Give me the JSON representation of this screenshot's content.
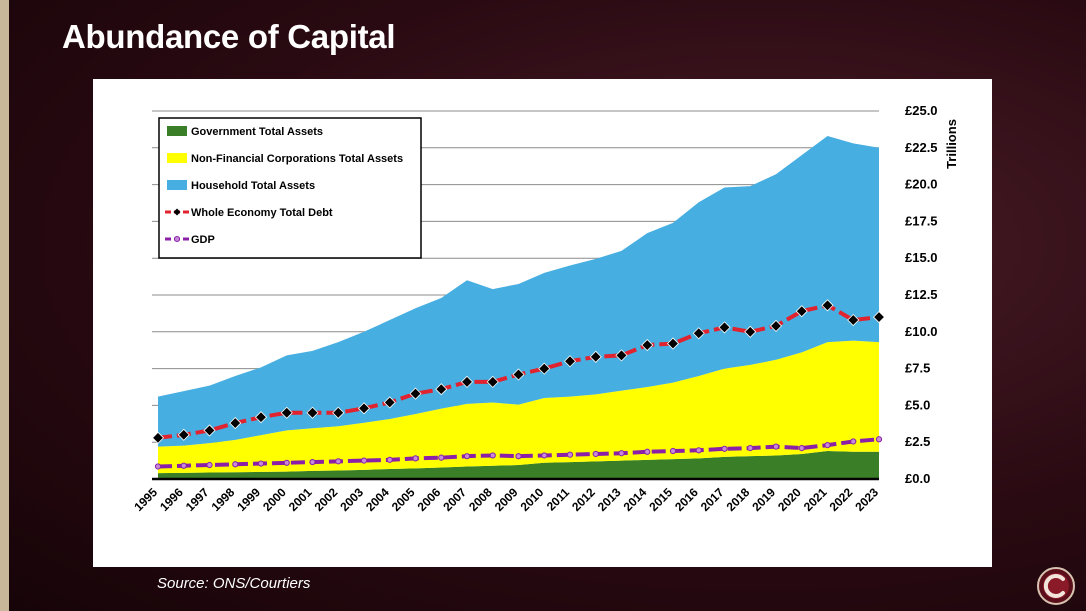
{
  "slide": {
    "title": "Abundance of Capital",
    "source": "Source: ONS/Courtiers"
  },
  "colors": {
    "government": "#3a7f27",
    "nfc": "#ffff00",
    "household": "#46aee0",
    "debt_line": "#e0232e",
    "debt_marker": "#000000",
    "gdp_line": "#8b1fa8",
    "gdp_marker": "#c58ad8"
  },
  "icons": {
    "logo": "courtiers-logo-icon"
  },
  "chart_data": {
    "type": "area",
    "title": "",
    "ylabel": "Trillions",
    "xlabel": "",
    "ylim": [
      0,
      25
    ],
    "y_ticks": [
      "£0.0",
      "£2.5",
      "£5.0",
      "£7.5",
      "£10.0",
      "£12.5",
      "£15.0",
      "£17.5",
      "£20.0",
      "£22.5",
      "£25.0"
    ],
    "y_axis_position": "right",
    "grid": true,
    "legend_position": "top-left",
    "x": [
      "1995",
      "1996",
      "1997",
      "1998",
      "1999",
      "2000",
      "2001",
      "2002",
      "2003",
      "2004",
      "2005",
      "2006",
      "2007",
      "2008",
      "2009",
      "2010",
      "2011",
      "2012",
      "2013",
      "2014",
      "2015",
      "2016",
      "2017",
      "2018",
      "2019",
      "2020",
      "2021",
      "2022",
      "2023"
    ],
    "stacked_series": [
      {
        "name": "Government Total Assets",
        "values": [
          0.4,
          0.42,
          0.44,
          0.46,
          0.48,
          0.5,
          0.55,
          0.58,
          0.62,
          0.68,
          0.72,
          0.78,
          0.85,
          0.9,
          0.95,
          1.1,
          1.15,
          1.2,
          1.25,
          1.3,
          1.35,
          1.4,
          1.5,
          1.55,
          1.6,
          1.7,
          1.9,
          1.85,
          1.85
        ]
      },
      {
        "name": "Non-Financial Corporations Total Assets",
        "values": [
          1.8,
          1.85,
          2.0,
          2.2,
          2.5,
          2.8,
          2.9,
          3.0,
          3.2,
          3.4,
          3.7,
          4.0,
          4.25,
          4.3,
          4.1,
          4.4,
          4.45,
          4.55,
          4.75,
          4.95,
          5.2,
          5.6,
          6.0,
          6.2,
          6.5,
          6.9,
          7.4,
          7.55,
          7.45
        ]
      },
      {
        "name": "Household Total Assets",
        "values": [
          3.4,
          3.7,
          3.9,
          4.34,
          4.6,
          5.1,
          5.25,
          5.72,
          6.18,
          6.72,
          7.18,
          7.52,
          8.4,
          7.7,
          8.2,
          8.5,
          8.9,
          9.2,
          9.5,
          10.45,
          10.85,
          11.8,
          12.3,
          12.15,
          12.6,
          13.4,
          14.0,
          13.4,
          13.2
        ]
      }
    ],
    "line_series": [
      {
        "name": "Whole Economy Total Debt",
        "values": [
          2.8,
          3.0,
          3.3,
          3.8,
          4.2,
          4.5,
          4.5,
          4.5,
          4.8,
          5.2,
          5.8,
          6.1,
          6.6,
          6.6,
          7.1,
          7.5,
          8.0,
          8.3,
          8.4,
          9.1,
          9.2,
          9.9,
          10.3,
          10.0,
          10.4,
          11.4,
          11.8,
          10.8,
          11.0
        ]
      },
      {
        "name": "GDP",
        "values": [
          0.85,
          0.9,
          0.95,
          1.0,
          1.05,
          1.1,
          1.15,
          1.2,
          1.25,
          1.3,
          1.4,
          1.45,
          1.55,
          1.6,
          1.55,
          1.6,
          1.65,
          1.7,
          1.75,
          1.85,
          1.9,
          1.95,
          2.05,
          2.1,
          2.2,
          2.1,
          2.3,
          2.55,
          2.7
        ]
      }
    ]
  }
}
